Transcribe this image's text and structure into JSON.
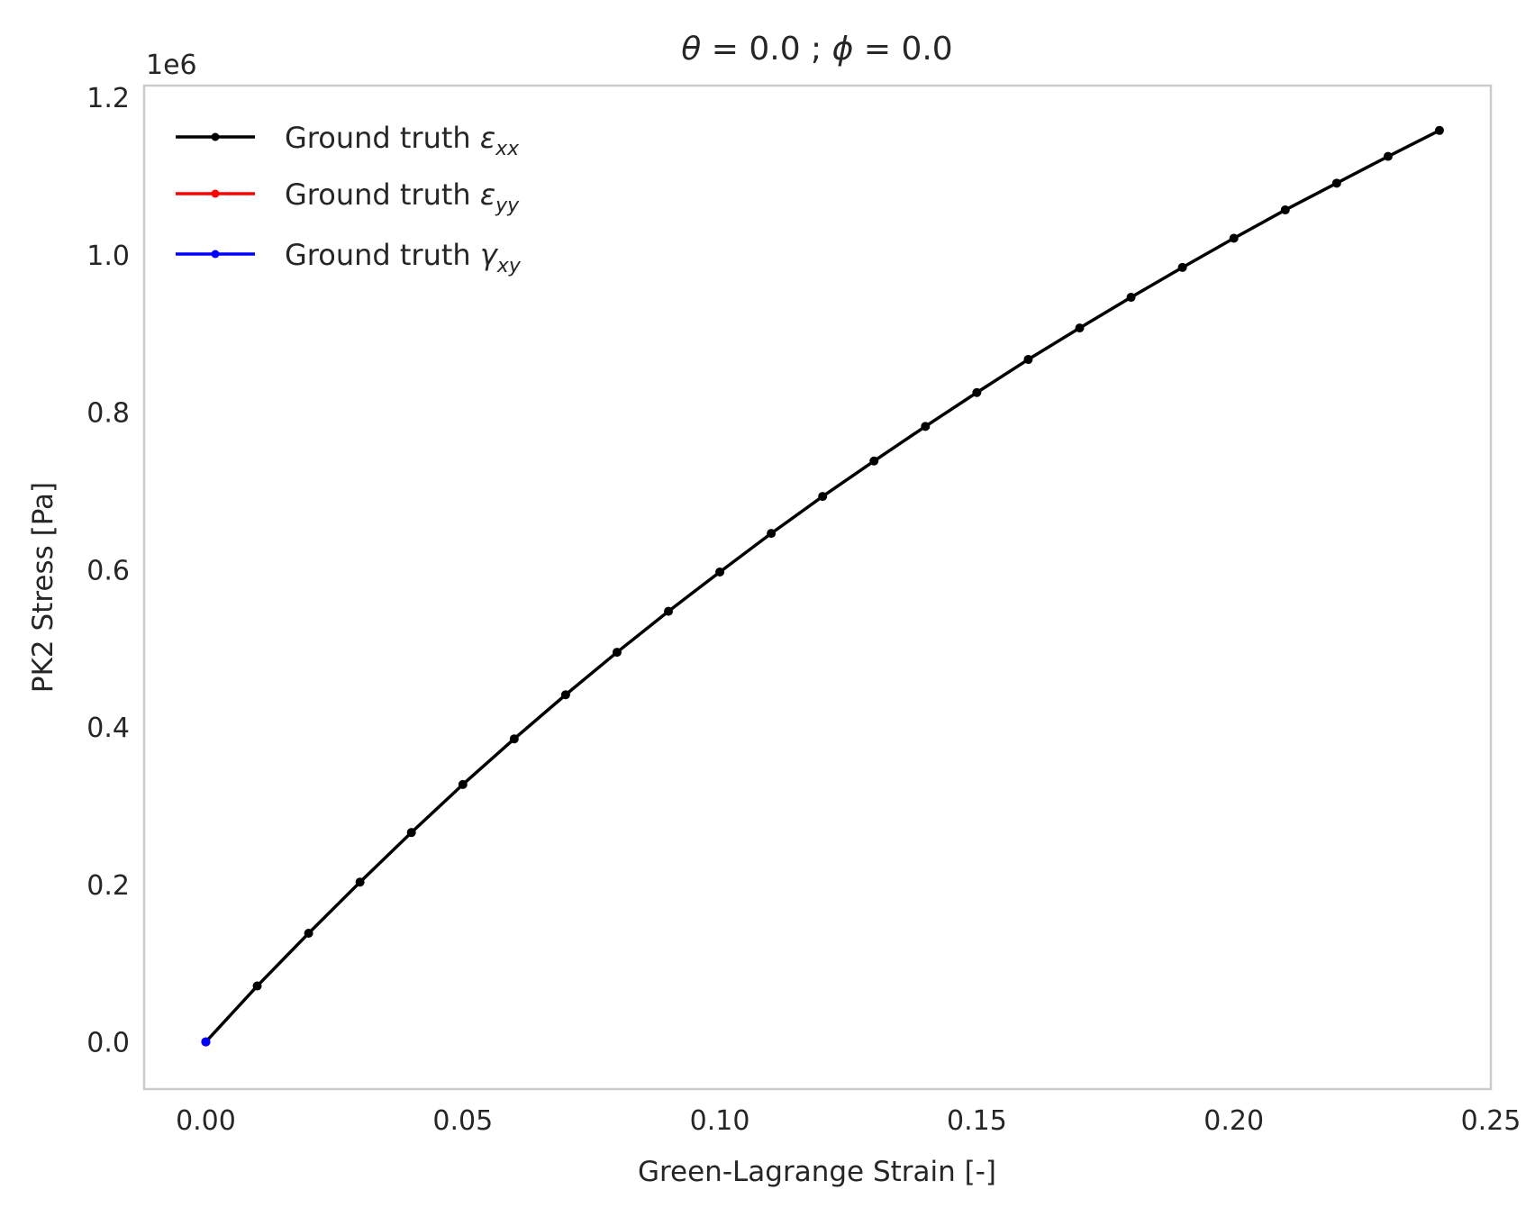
{
  "chart_data": {
    "type": "line",
    "title": "θ = 0.0 ; ϕ = 0.0",
    "title_parts": {
      "theta_symbol": "θ",
      "theta_text": " = 0.0 ; ",
      "phi_symbol": "ϕ",
      "phi_text": " = 0.0"
    },
    "xlabel": "Green-Lagrange Strain [-]",
    "ylabel": "PK2 Stress [Pa]",
    "y_offset_text": "1e6",
    "xlim": [
      -0.012,
      0.25
    ],
    "ylim": [
      -0.06,
      1.215
    ],
    "x_ticks": [
      "0.00",
      "0.05",
      "0.10",
      "0.15",
      "0.20",
      "0.25"
    ],
    "x_tick_values": [
      0.0,
      0.05,
      0.1,
      0.15,
      0.2,
      0.25
    ],
    "y_ticks": [
      "0.0",
      "0.2",
      "0.4",
      "0.6",
      "0.8",
      "1.0",
      "1.2"
    ],
    "y_tick_values": [
      0.0,
      0.2,
      0.4,
      0.6,
      0.8,
      1.0,
      1.2
    ],
    "y_scale_note": "values in units of 1e6 Pa",
    "grid": false,
    "legend_position": "top-left",
    "colors": {
      "exx": "#000000",
      "eyy": "#ff0000",
      "gxy": "#0000ff",
      "frame": "#cccccc",
      "text": "#262626"
    },
    "series": [
      {
        "name": "Ground truth εxx",
        "legend_prefix": "Ground truth ",
        "legend_symbol": "ε",
        "legend_subscript": "xx",
        "color": "#000000",
        "x": [
          0.0,
          0.01,
          0.02,
          0.03,
          0.04,
          0.05,
          0.06,
          0.07,
          0.08,
          0.09,
          0.1,
          0.11,
          0.12,
          0.13,
          0.14,
          0.15,
          0.16,
          0.17,
          0.18,
          0.19,
          0.2,
          0.21,
          0.22,
          0.23,
          0.24
        ],
        "y": [
          0.0,
          0.071,
          0.138,
          0.203,
          0.266,
          0.327,
          0.385,
          0.441,
          0.495,
          0.547,
          0.597,
          0.646,
          0.693,
          0.738,
          0.782,
          0.825,
          0.867,
          0.907,
          0.946,
          0.984,
          1.021,
          1.057,
          1.091,
          1.125,
          1.158
        ]
      },
      {
        "name": "Ground truth εyy",
        "legend_prefix": "Ground truth ",
        "legend_symbol": "ε",
        "legend_subscript": "yy",
        "color": "#ff0000",
        "x": [
          0.0
        ],
        "y": [
          0.0
        ]
      },
      {
        "name": "Ground truth γxy",
        "legend_prefix": "Ground truth ",
        "legend_symbol": "γ",
        "legend_subscript": "xy",
        "color": "#0000ff",
        "x": [
          0.0
        ],
        "y": [
          0.0
        ]
      }
    ]
  }
}
